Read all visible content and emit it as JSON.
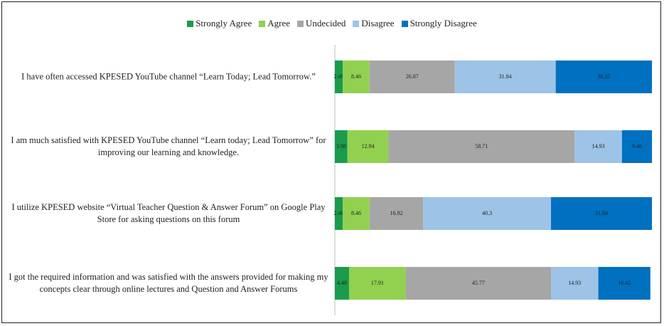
{
  "chart_data": {
    "type": "stacked-bar-horizontal",
    "categories": [
      "I have often accessed KPESED YouTube channel “Learn Today; Lead Tomorrow.”",
      "I am much satisfied with KPESED YouTube channel “Learn today; Lead Tomorrow” for improving our learning and knowledge.",
      "I utilize KPESED website “Virtual Teacher Question & Answer Forum” on Google Play Store for asking questions on this forum",
      "I got the required information and was satisfied with the answers provided for making my concepts clear through online lectures and Question and Answer Forums"
    ],
    "series": [
      {
        "name": "Strongly Agree",
        "color": "#1a9c4c",
        "values": [
          2.49,
          3.98,
          2.49,
          4.48
        ]
      },
      {
        "name": "Agree",
        "color": "#92d050",
        "values": [
          8.46,
          12.94,
          8.46,
          17.91
        ]
      },
      {
        "name": "Undecided",
        "color": "#a6a6a6",
        "values": [
          26.87,
          58.71,
          16.92,
          45.77
        ]
      },
      {
        "name": "Disagree",
        "color": "#9dc3e6",
        "values": [
          31.84,
          14.93,
          40.3,
          14.93
        ]
      },
      {
        "name": "Strongly Disagree",
        "color": "#0070c0",
        "values": [
          30.35,
          9.46,
          31.84,
          16.42
        ]
      }
    ],
    "xlim": [
      0,
      100
    ],
    "legend": "top"
  }
}
